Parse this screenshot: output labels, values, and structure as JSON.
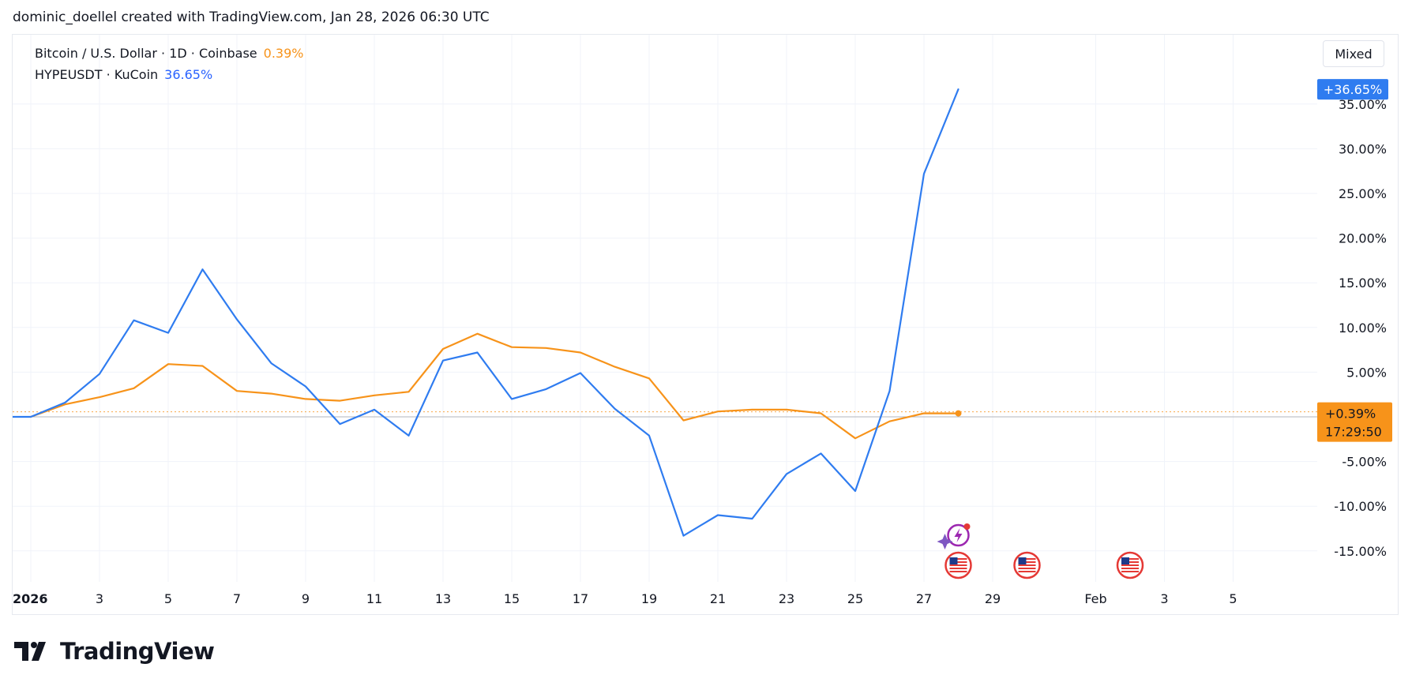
{
  "credit": "dominic_doellel created with TradingView.com, Jan 28, 2026 06:30 UTC",
  "brand": "TradingView",
  "scale_mode_button": "Mixed",
  "legend": [
    {
      "label": "Bitcoin / U.S. Dollar · 1D · Coinbase",
      "change": "0.39%",
      "color": "#f7931a"
    },
    {
      "label": "HYPEUSDT · KuCoin",
      "change": "36.65%",
      "color": "#2962ff"
    }
  ],
  "price_tags": {
    "hype": "+36.65%",
    "btc": "+0.39%",
    "btc_countdown": "17:29:50"
  },
  "colors": {
    "btc": "#f7931a",
    "hype": "#2f7cf0",
    "grid": "#f0f3fa",
    "axis_text": "#131722"
  },
  "chart_data": {
    "type": "line",
    "title": "",
    "xlabel": "",
    "ylabel": "",
    "x": [
      "2026-01-01",
      "2026-01-02",
      "2026-01-03",
      "2026-01-04",
      "2026-01-05",
      "2026-01-06",
      "2026-01-07",
      "2026-01-08",
      "2026-01-09",
      "2026-01-10",
      "2026-01-11",
      "2026-01-12",
      "2026-01-13",
      "2026-01-14",
      "2026-01-15",
      "2026-01-16",
      "2026-01-17",
      "2026-01-18",
      "2026-01-19",
      "2026-01-20",
      "2026-01-21",
      "2026-01-22",
      "2026-01-23",
      "2026-01-24",
      "2026-01-25",
      "2026-01-26",
      "2026-01-27",
      "2026-01-28"
    ],
    "series": [
      {
        "name": "Bitcoin / U.S. Dollar · 1D · Coinbase",
        "values": [
          0,
          1.4,
          2.2,
          3.2,
          5.9,
          5.7,
          2.9,
          2.6,
          2.0,
          1.8,
          2.4,
          2.8,
          7.6,
          9.3,
          7.8,
          7.7,
          7.2,
          5.6,
          4.3,
          -0.4,
          0.6,
          0.8,
          0.8,
          0.4,
          -2.4,
          -0.5,
          0.4,
          0.39
        ]
      },
      {
        "name": "HYPEUSDT · KuCoin",
        "values": [
          0,
          1.6,
          4.8,
          10.8,
          9.4,
          16.5,
          10.9,
          6.0,
          3.4,
          -0.8,
          0.8,
          -2.1,
          6.3,
          7.2,
          2.0,
          3.1,
          4.9,
          0.9,
          -2.1,
          -13.3,
          -11.0,
          -11.4,
          -6.4,
          -4.1,
          -8.3,
          2.9,
          27.2,
          36.65
        ]
      }
    ],
    "ylim": [
      -20,
      40
    ],
    "y_ticks": [
      "35.00%",
      "30.00%",
      "25.00%",
      "20.00%",
      "15.00%",
      "10.00%",
      "5.00%",
      "-5.00%",
      "-10.00%",
      "-15.00%"
    ],
    "x_ticks": [
      {
        "label": "2026",
        "date": "2026-01-01"
      },
      {
        "label": "3",
        "date": "2026-01-03"
      },
      {
        "label": "5",
        "date": "2026-01-05"
      },
      {
        "label": "7",
        "date": "2026-01-07"
      },
      {
        "label": "9",
        "date": "2026-01-09"
      },
      {
        "label": "11",
        "date": "2026-01-11"
      },
      {
        "label": "13",
        "date": "2026-01-13"
      },
      {
        "label": "15",
        "date": "2026-01-15"
      },
      {
        "label": "17",
        "date": "2026-01-17"
      },
      {
        "label": "19",
        "date": "2026-01-19"
      },
      {
        "label": "21",
        "date": "2026-01-21"
      },
      {
        "label": "23",
        "date": "2026-01-23"
      },
      {
        "label": "25",
        "date": "2026-01-25"
      },
      {
        "label": "27",
        "date": "2026-01-27"
      },
      {
        "label": "29",
        "date": "2026-01-29"
      },
      {
        "label": "Feb",
        "date": "2026-02-01"
      },
      {
        "label": "3",
        "date": "2026-02-03"
      },
      {
        "label": "5",
        "date": "2026-02-05"
      }
    ],
    "events": [
      {
        "type": "us-economic-event-icon",
        "date": "2026-01-28"
      },
      {
        "type": "us-economic-event-icon",
        "date": "2026-01-30"
      },
      {
        "type": "us-economic-event-icon",
        "date": "2026-02-02"
      },
      {
        "type": "crypto-event-icon",
        "date": "2026-01-28"
      }
    ],
    "grid": true,
    "legend_position": "top-left"
  }
}
